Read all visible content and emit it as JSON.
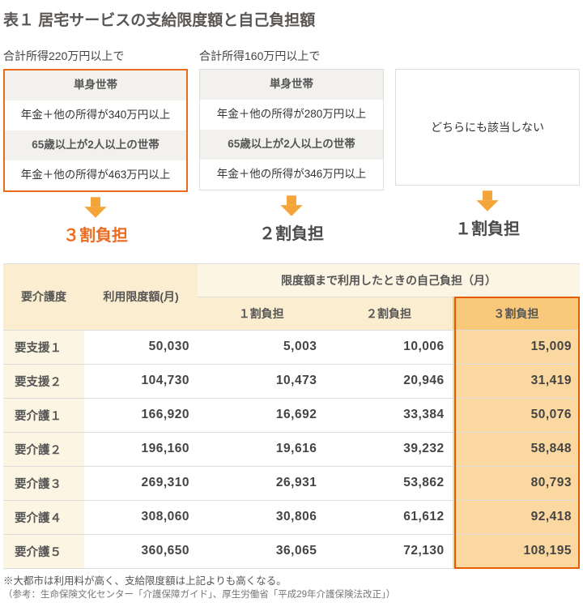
{
  "title": "表１ 居宅サービスの支給限度額と自己負担額",
  "criteria": [
    {
      "label": "合計所得220万円以上で",
      "highlight": true,
      "rows": [
        "単身世帯",
        "年金＋他の所得が340万円以上",
        "65歳以上が2人以上の世帯",
        "年金＋他の所得が463万円以上"
      ],
      "rate": "３割負担",
      "arrow_fill": "#f5a43a"
    },
    {
      "label": "合計所得160万円以上で",
      "highlight": false,
      "rows": [
        "単身世帯",
        "年金＋他の所得が280万円以上",
        "65歳以上が2人以上の世帯",
        "年金＋他の所得が346万円以上"
      ],
      "rate": "２割負担",
      "arrow_fill": "#f5a43a"
    },
    {
      "label": "",
      "highlight": false,
      "plain": "どちらにも該当しない",
      "rate": "１割負担",
      "arrow_fill": "#f5a43a"
    }
  ],
  "table": {
    "head1": [
      "要介護度",
      "利用限度額(月)",
      "限度額まで利用したときの自己負担（月）"
    ],
    "head2": [
      "１割負担",
      "２割負担",
      "３割負担"
    ],
    "rows": [
      {
        "k": "要支援１",
        "limit": "50,030",
        "v1": "5,003",
        "v2": "10,006",
        "v3": "15,009"
      },
      {
        "k": "要支援２",
        "limit": "104,730",
        "v1": "10,473",
        "v2": "20,946",
        "v3": "31,419"
      },
      {
        "k": "要介護１",
        "limit": "166,920",
        "v1": "16,692",
        "v2": "33,384",
        "v3": "50,076"
      },
      {
        "k": "要介護２",
        "limit": "196,160",
        "v1": "19,616",
        "v2": "39,232",
        "v3": "58,848"
      },
      {
        "k": "要介護３",
        "limit": "269,310",
        "v1": "26,931",
        "v2": "53,862",
        "v3": "80,793"
      },
      {
        "k": "要介護４",
        "limit": "308,060",
        "v1": "30,806",
        "v2": "61,612",
        "v3": "92,418"
      },
      {
        "k": "要介護５",
        "limit": "360,650",
        "v1": "36,065",
        "v2": "72,130",
        "v3": "108,195"
      }
    ]
  },
  "notes": {
    "n1": "※大都市は利用料が高く、支給限度額は上記よりも高くなる。",
    "n2": "（参考：生命保険文化センター「介護保障ガイド」、厚生労働省「平成29年介護保険法改正」）"
  }
}
